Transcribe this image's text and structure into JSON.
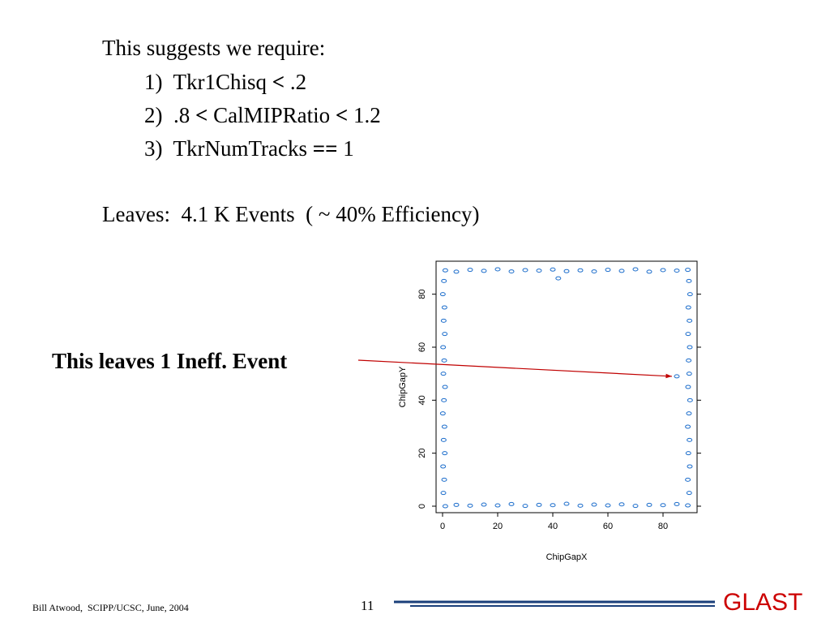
{
  "slide": {
    "intro": "This suggests we require:",
    "requirements": [
      {
        "num": "1)",
        "pre": "Tkr1Chisq",
        "op": "<",
        "post": ".2"
      },
      {
        "num": "2)",
        "pre": ".8",
        "op": "<",
        "mid": "CalMIPRatio",
        "op2": "<",
        "post": "1.2"
      },
      {
        "num": "3)",
        "pre": "TkrNumTracks",
        "op": "==",
        "post": "1"
      }
    ],
    "leaves": "Leaves:  4.1 K Events  ( ~ 40% Efficiency)",
    "callout": "This leaves 1 Ineff. Event"
  },
  "chart_data": {
    "type": "scatter",
    "xlabel": "ChipGapX",
    "ylabel": "ChipGapY",
    "xlim": [
      0,
      90
    ],
    "ylim": [
      0,
      90
    ],
    "xticks": [
      "0",
      "20",
      "40",
      "60",
      "80"
    ],
    "yticks": [
      "0",
      "20",
      "40",
      "60",
      "80"
    ],
    "marker_color": "#1f6fcc",
    "series": [
      {
        "values_description": null,
        "points": [
          [
            1,
            0
          ],
          [
            5,
            0.5
          ],
          [
            10,
            0.2
          ],
          [
            15,
            0.6
          ],
          [
            20,
            0.3
          ],
          [
            25,
            0.8
          ],
          [
            30,
            0.1
          ],
          [
            35,
            0.5
          ],
          [
            40,
            0.4
          ],
          [
            45,
            0.9
          ],
          [
            50,
            0.2
          ],
          [
            55,
            0.6
          ],
          [
            60,
            0.3
          ],
          [
            65,
            0.7
          ],
          [
            70,
            0.1
          ],
          [
            75,
            0.5
          ],
          [
            80,
            0.4
          ],
          [
            85,
            0.8
          ],
          [
            89,
            0.3
          ],
          [
            1,
            89
          ],
          [
            5,
            88.5
          ],
          [
            10,
            89.2
          ],
          [
            15,
            88.8
          ],
          [
            20,
            89.4
          ],
          [
            25,
            88.6
          ],
          [
            30,
            89.1
          ],
          [
            35,
            88.9
          ],
          [
            40,
            89.3
          ],
          [
            45,
            88.7
          ],
          [
            50,
            89
          ],
          [
            55,
            88.6
          ],
          [
            60,
            89.2
          ],
          [
            65,
            88.8
          ],
          [
            70,
            89.4
          ],
          [
            75,
            88.5
          ],
          [
            80,
            89.1
          ],
          [
            85,
            88.9
          ],
          [
            89,
            89.2
          ],
          [
            0.3,
            5
          ],
          [
            0.6,
            10
          ],
          [
            0.2,
            15
          ],
          [
            0.8,
            20
          ],
          [
            0.4,
            25
          ],
          [
            0.7,
            30
          ],
          [
            0.1,
            35
          ],
          [
            0.5,
            40
          ],
          [
            0.9,
            45
          ],
          [
            0.3,
            50
          ],
          [
            0.6,
            55
          ],
          [
            0.2,
            60
          ],
          [
            0.8,
            65
          ],
          [
            0.4,
            70
          ],
          [
            0.7,
            75
          ],
          [
            0.1,
            80
          ],
          [
            0.5,
            85
          ],
          [
            89.5,
            5
          ],
          [
            89,
            10
          ],
          [
            89.7,
            15
          ],
          [
            89.2,
            20
          ],
          [
            89.6,
            25
          ],
          [
            89,
            30
          ],
          [
            89.4,
            35
          ],
          [
            89.8,
            40
          ],
          [
            89.1,
            45
          ],
          [
            89.5,
            50
          ],
          [
            89.3,
            55
          ],
          [
            89.7,
            60
          ],
          [
            89.1,
            65
          ],
          [
            89.6,
            70
          ],
          [
            89.2,
            75
          ],
          [
            89.8,
            80
          ],
          [
            89.4,
            85
          ],
          [
            42,
            86
          ],
          [
            85,
            49
          ]
        ]
      }
    ],
    "highlighted_point": [
      85,
      49
    ]
  },
  "footer": {
    "author": "Bill Atwood,  SCIPP/UCSC, June, 2004",
    "page": "11",
    "logo": "GLAST"
  },
  "colors": {
    "arrow": "#c00000",
    "logo": "#cc0000",
    "footer_line": "#1a3f7a"
  }
}
